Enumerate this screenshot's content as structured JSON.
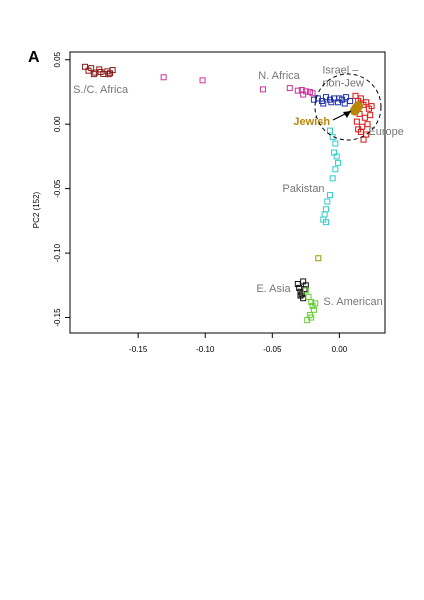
{
  "chart_data": {
    "type": "scatter",
    "panel_label": "A",
    "ylabel": "PC2 (152)",
    "xlim": [
      -0.2008,
      0.034
    ],
    "ylim": [
      -0.162,
      0.056
    ],
    "xticks": [
      -0.15,
      {
        "value": -0.1,
        "label": "-0.10"
      },
      -0.05,
      {
        "value": 0,
        "label": "0.00"
      }
    ],
    "yticks": [
      0.05,
      {
        "value": 0,
        "label": "0.00"
      },
      -0.05,
      {
        "value": -0.1,
        "label": "-0.10"
      },
      -0.15
    ],
    "series": [
      {
        "color": "#8b1a1a",
        "marker": "square",
        "x": [
          -0.1896,
          -0.187,
          -0.185,
          -0.182,
          -0.179,
          -0.176,
          -0.173,
          -0.171,
          -0.169,
          -0.183,
          -0.178,
          -0.172
        ],
        "values": [
          0.0445,
          0.0415,
          0.0435,
          0.04,
          0.0425,
          0.039,
          0.041,
          0.0395,
          0.042,
          0.0388,
          0.0405,
          0.0388
        ]
      },
      {
        "color": "#cc3399",
        "marker": "square",
        "x": [
          -0.131,
          -0.102,
          -0.057,
          -0.037,
          -0.031,
          -0.028,
          -0.025,
          -0.022,
          -0.02,
          -0.027
        ],
        "values": [
          0.0364,
          0.034,
          0.027,
          0.028,
          0.026,
          0.0265,
          0.0255,
          0.025,
          0.024,
          0.023
        ]
      },
      {
        "color": "#2233aa",
        "marker": "square",
        "x": [
          -0.019,
          -0.016,
          -0.013,
          -0.01,
          -0.007,
          -0.004,
          -0.001,
          0.002,
          0.005,
          0.008,
          -0.012,
          -0.006,
          0.0,
          0.004
        ],
        "values": [
          0.019,
          0.02,
          0.018,
          0.021,
          0.019,
          0.02,
          0.017,
          0.019,
          0.021,
          0.018,
          0.016,
          0.017,
          0.02,
          0.016
        ]
      },
      {
        "color": "#dd1111",
        "marker": "square",
        "x": [
          0.012,
          0.014,
          0.016,
          0.018,
          0.02,
          0.022,
          0.024,
          0.015,
          0.019,
          0.023,
          0.013,
          0.017,
          0.021,
          0.016,
          0.02,
          0.018,
          0.014
        ],
        "values": [
          0.022,
          0.018,
          0.02,
          0.015,
          0.017,
          0.012,
          0.014,
          0.008,
          0.005,
          0.007,
          0.002,
          -0.002,
          0.0,
          -0.006,
          -0.008,
          -0.012,
          -0.004
        ]
      },
      {
        "color": "#b8860b",
        "marker": "circle",
        "x": [
          0.0127,
          0.014,
          0.0115
        ],
        "values": [
          0.0124,
          0.014,
          0.0105
        ]
      },
      {
        "color": "#33cccc",
        "marker": "square",
        "x": [
          -0.007,
          -0.005,
          -0.003,
          -0.004,
          -0.002,
          -0.001,
          -0.003,
          -0.005,
          -0.007,
          -0.009,
          -0.01,
          -0.011,
          -0.012,
          -0.01
        ],
        "values": [
          -0.005,
          -0.01,
          -0.015,
          -0.022,
          -0.025,
          -0.03,
          -0.035,
          -0.042,
          -0.055,
          -0.06,
          -0.066,
          -0.07,
          -0.074,
          -0.076
        ]
      },
      {
        "color": "#999900",
        "marker": "square",
        "x": [
          -0.0157
        ],
        "values": [
          -0.104
        ]
      },
      {
        "color": "#111111",
        "marker": "square",
        "x": [
          -0.031,
          -0.03,
          -0.029,
          -0.028,
          -0.027,
          -0.026,
          -0.025,
          -0.029,
          -0.027
        ],
        "values": [
          -0.124,
          -0.127,
          -0.13,
          -0.132,
          -0.135,
          -0.128,
          -0.125,
          -0.133,
          -0.122
        ]
      },
      {
        "color": "#66cc33",
        "marker": "square",
        "x": [
          -0.025,
          -0.023,
          -0.021,
          -0.02,
          -0.019,
          -0.018,
          -0.022,
          -0.024,
          -0.021
        ],
        "values": [
          -0.129,
          -0.134,
          -0.138,
          -0.141,
          -0.144,
          -0.139,
          -0.148,
          -0.152,
          -0.15
        ]
      }
    ],
    "annotations": [
      {
        "text": "S./C. Africa",
        "x": -0.1985,
        "y": 0.0265,
        "color": "#777777"
      },
      {
        "text": "N. Africa",
        "x": -0.0605,
        "y": 0.0375,
        "color": "#777777"
      },
      {
        "text": "Israel –",
        "x": -0.0127,
        "y": 0.0415,
        "color": "#777777"
      },
      {
        "text": "non-Jew",
        "x": -0.0127,
        "y": 0.0315,
        "color": "#777777"
      },
      {
        "text": "Jewish",
        "x": -0.0343,
        "y": 0.0015,
        "color": "#b8860b",
        "bold": true
      },
      {
        "text": "Europe",
        "x": 0.0216,
        "y": -0.0062,
        "color": "#777777"
      },
      {
        "text": "Pakistan",
        "x": -0.0425,
        "y": -0.0504,
        "color": "#777777"
      },
      {
        "text": "E. Asia",
        "x": -0.0619,
        "y": -0.1279,
        "color": "#777777"
      },
      {
        "text": "S. American",
        "x": -0.0119,
        "y": -0.1379,
        "color": "#777777"
      }
    ]
  }
}
